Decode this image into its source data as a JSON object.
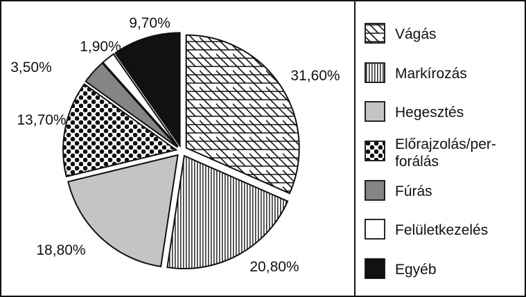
{
  "chart_data": {
    "type": "pie",
    "title": "",
    "slices": [
      {
        "name": "Vágás",
        "value": 31.6,
        "label": "31,60%",
        "pattern": "cross-hatch"
      },
      {
        "name": "Markírozás",
        "value": 20.8,
        "label": "20,80%",
        "pattern": "vertical-lines"
      },
      {
        "name": "Hegesztés",
        "value": 18.8,
        "label": "18,80%",
        "pattern": "light-gray"
      },
      {
        "name": "Előrajzolás/perforálás",
        "value": 13.7,
        "label": "13,70%",
        "pattern": "polka-dots"
      },
      {
        "name": "Fúrás",
        "value": 3.5,
        "label": "3,50%",
        "pattern": "dark-gray"
      },
      {
        "name": "Felületkezelés",
        "value": 1.9,
        "label": "1,90%",
        "pattern": "white"
      },
      {
        "name": "Egyéb",
        "value": 9.7,
        "label": "9,70%",
        "pattern": "black"
      }
    ],
    "legend": {
      "placement": "right",
      "items": [
        {
          "line1": "Vágás",
          "line2": ""
        },
        {
          "line1": "Markírozás",
          "line2": ""
        },
        {
          "line1": "Hegesztés",
          "line2": ""
        },
        {
          "line1": "Előrajzolás/per-",
          "line2": "forálás"
        },
        {
          "line1": "Fúrás",
          "line2": ""
        },
        {
          "line1": "Felületkezelés",
          "line2": ""
        },
        {
          "line1": "Egyéb",
          "line2": ""
        }
      ]
    },
    "colors": {
      "light_gray": "#c4c4c4",
      "dark_gray": "#858585",
      "black": "#111111",
      "outline": "#111111"
    }
  }
}
